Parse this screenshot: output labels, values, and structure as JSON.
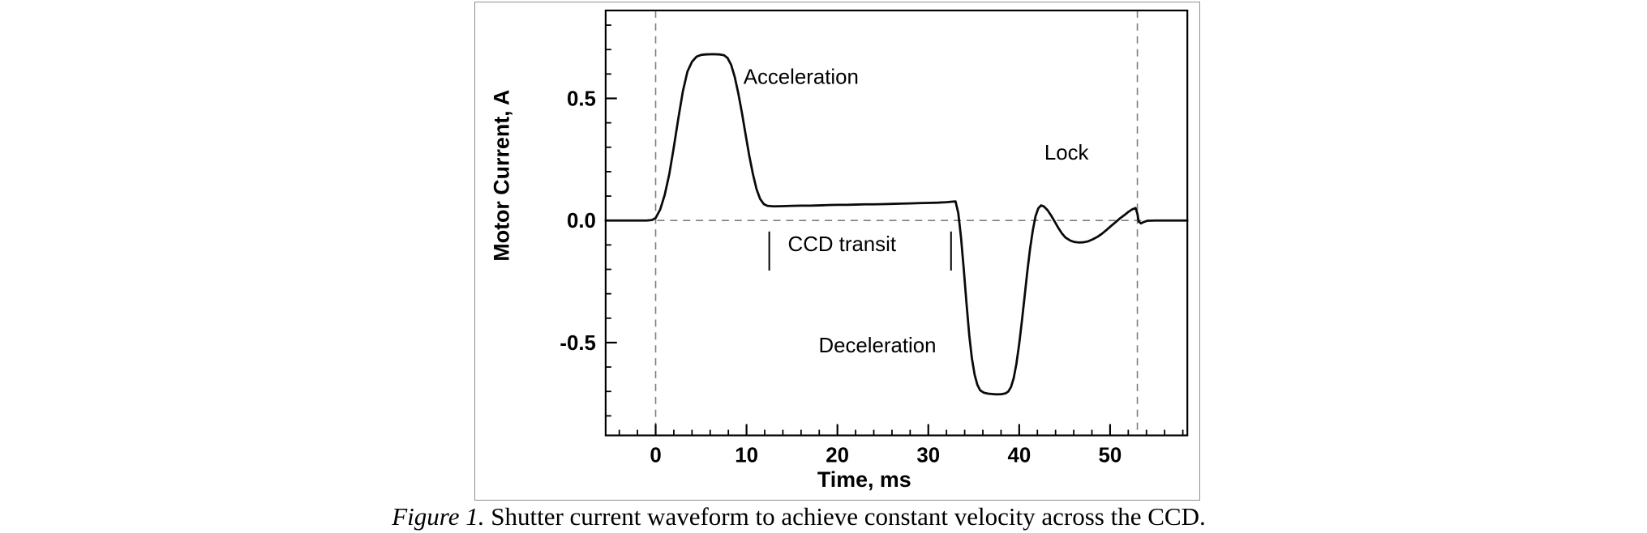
{
  "figure": {
    "caption_label": "Figure 1.",
    "caption_text": " Shutter current waveform to achieve constant velocity across the CCD."
  },
  "chart_data": {
    "type": "line",
    "title": "",
    "xlabel": "Time, ms",
    "ylabel": "Motor Current, A",
    "xlim": [
      -5.5,
      58.5
    ],
    "ylim": [
      -0.88,
      0.86
    ],
    "grid": false,
    "legend_position": "none",
    "x_major_ticks": [
      0,
      10,
      20,
      30,
      40,
      50
    ],
    "x_minor_step": 2,
    "y_major_ticks": [
      0.5,
      0.0,
      -0.5
    ],
    "y_major_labels": [
      "0.5",
      "0.0",
      "-0.5"
    ],
    "y_minor_step": 0.1,
    "line_color": "#0a0a0a",
    "dash_color": "#7d7d7d",
    "reference_lines": {
      "horizontal_zero": 0,
      "vertical_dashed": [
        0,
        53
      ]
    },
    "transit_markers": {
      "x": [
        12.5,
        32.5
      ],
      "y_top": -0.045,
      "y_bottom": -0.205
    },
    "annotations": [
      {
        "text": "Acceleration",
        "x": 16,
        "y": 0.56,
        "anchor": "middle"
      },
      {
        "text": "CCD  transit",
        "x": 20.5,
        "y": -0.125,
        "anchor": "middle"
      },
      {
        "text": "Deceleration",
        "x": 24.4,
        "y": -0.54,
        "anchor": "middle"
      },
      {
        "text": "Lock",
        "x": 45.2,
        "y": 0.25,
        "anchor": "middle"
      }
    ],
    "series": [
      {
        "name": "motor_current",
        "points": [
          [
            -5.5,
            0
          ],
          [
            -4,
            0
          ],
          [
            -2.5,
            0
          ],
          [
            -1,
            0
          ],
          [
            -0.4,
            0.002
          ],
          [
            0,
            0.01
          ],
          [
            0.5,
            0.045
          ],
          [
            1,
            0.105
          ],
          [
            1.5,
            0.19
          ],
          [
            2,
            0.3
          ],
          [
            2.5,
            0.42
          ],
          [
            3,
            0.53
          ],
          [
            3.5,
            0.61
          ],
          [
            4,
            0.65
          ],
          [
            4.5,
            0.671
          ],
          [
            5,
            0.678
          ],
          [
            5.5,
            0.68
          ],
          [
            6.3,
            0.681
          ],
          [
            7,
            0.68
          ],
          [
            7.5,
            0.677
          ],
          [
            7.9,
            0.666
          ],
          [
            8.3,
            0.638
          ],
          [
            8.7,
            0.588
          ],
          [
            9.1,
            0.52
          ],
          [
            9.5,
            0.44
          ],
          [
            9.9,
            0.352
          ],
          [
            10.3,
            0.266
          ],
          [
            10.7,
            0.19
          ],
          [
            11.1,
            0.128
          ],
          [
            11.5,
            0.088
          ],
          [
            11.9,
            0.067
          ],
          [
            12.3,
            0.06
          ],
          [
            13,
            0.058
          ],
          [
            14,
            0.059
          ],
          [
            15,
            0.06
          ],
          [
            16,
            0.061
          ],
          [
            17,
            0.061
          ],
          [
            18,
            0.062
          ],
          [
            19,
            0.063
          ],
          [
            20,
            0.064
          ],
          [
            21,
            0.064
          ],
          [
            22,
            0.065
          ],
          [
            23,
            0.066
          ],
          [
            24,
            0.066
          ],
          [
            25,
            0.067
          ],
          [
            26,
            0.068
          ],
          [
            27,
            0.069
          ],
          [
            28,
            0.07
          ],
          [
            29,
            0.071
          ],
          [
            30,
            0.072
          ],
          [
            31,
            0.073
          ],
          [
            32,
            0.075
          ],
          [
            32.6,
            0.077
          ],
          [
            33,
            0.078
          ],
          [
            33.3,
            0.03
          ],
          [
            33.6,
            -0.07
          ],
          [
            33.9,
            -0.2
          ],
          [
            34.2,
            -0.34
          ],
          [
            34.5,
            -0.47
          ],
          [
            34.8,
            -0.565
          ],
          [
            35.1,
            -0.632
          ],
          [
            35.4,
            -0.673
          ],
          [
            35.7,
            -0.695
          ],
          [
            36.1,
            -0.705
          ],
          [
            36.6,
            -0.709
          ],
          [
            37.1,
            -0.711
          ],
          [
            37.6,
            -0.712
          ],
          [
            38.1,
            -0.711
          ],
          [
            38.5,
            -0.708
          ],
          [
            38.8,
            -0.7
          ],
          [
            39.1,
            -0.682
          ],
          [
            39.4,
            -0.645
          ],
          [
            39.7,
            -0.585
          ],
          [
            40,
            -0.505
          ],
          [
            40.3,
            -0.41
          ],
          [
            40.6,
            -0.308
          ],
          [
            40.9,
            -0.208
          ],
          [
            41.2,
            -0.115
          ],
          [
            41.5,
            -0.04
          ],
          [
            41.8,
            0.018
          ],
          [
            42.1,
            0.05
          ],
          [
            42.4,
            0.062
          ],
          [
            42.7,
            0.058
          ],
          [
            43.1,
            0.043
          ],
          [
            43.5,
            0.021
          ],
          [
            43.9,
            -0.004
          ],
          [
            44.3,
            -0.03
          ],
          [
            44.7,
            -0.053
          ],
          [
            45.1,
            -0.07
          ],
          [
            45.6,
            -0.082
          ],
          [
            46.1,
            -0.088
          ],
          [
            46.6,
            -0.09
          ],
          [
            47.1,
            -0.089
          ],
          [
            47.6,
            -0.085
          ],
          [
            48.1,
            -0.077
          ],
          [
            48.6,
            -0.067
          ],
          [
            49.1,
            -0.054
          ],
          [
            49.6,
            -0.039
          ],
          [
            50.1,
            -0.023
          ],
          [
            50.6,
            -0.007
          ],
          [
            51.1,
            0.009
          ],
          [
            51.6,
            0.023
          ],
          [
            52,
            0.035
          ],
          [
            52.4,
            0.045
          ],
          [
            52.8,
            0.051
          ],
          [
            53,
            0.028
          ],
          [
            53.15,
            -0.004
          ],
          [
            53.4,
            -0.012
          ],
          [
            53.7,
            -0.006
          ],
          [
            54.1,
            -0.001
          ],
          [
            55,
            0
          ],
          [
            56.5,
            0
          ],
          [
            58.5,
            0
          ]
        ]
      }
    ]
  }
}
